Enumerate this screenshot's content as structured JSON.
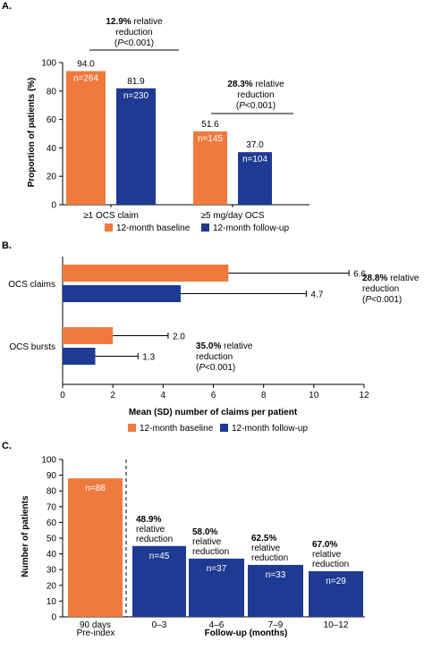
{
  "colors": {
    "baseline": "#f07a3e",
    "followup": "#1f3a93",
    "axis": "#000000"
  },
  "legend": {
    "baseline": "12-month baseline",
    "followup": "12-month follow-up"
  },
  "panelA": {
    "label": "A.",
    "ylabel": "Proportion of patients (%)",
    "annotations": [
      {
        "bold": "12.9%",
        "rest": " relative",
        "line2": "reduction",
        "pre": "(",
        "p": "P",
        "post": "<0.001)"
      },
      {
        "bold": "28.3%",
        "rest": " relative",
        "line2": "reduction",
        "pre": "(",
        "p": "P",
        "post": "<0.001)"
      }
    ]
  },
  "panelB": {
    "label": "B.",
    "xlabel": "Mean (SD) number of claims per patient",
    "annotations": [
      {
        "bold": "28.8%",
        "rest": " relative",
        "line2": "reduction",
        "pre": "(",
        "p": "P",
        "post": "<0.001)"
      },
      {
        "bold": "35.0%",
        "rest": " relative",
        "line2": "reduction",
        "pre": "(",
        "p": "P",
        "post": "<0.001)"
      }
    ]
  },
  "panelC": {
    "label": "C.",
    "ylabel": "Number of patients",
    "xlabel_secondary": "Pre-index",
    "xlabel_main": "Follow-up (months)",
    "annotation_line2": "relative",
    "annotation_line3": "reduction"
  },
  "chart_data": [
    {
      "type": "bar",
      "orientation": "vertical",
      "categories": [
        "≥1 OCS claim",
        "≥5 mg/day OCS"
      ],
      "series": [
        {
          "name": "12-month baseline",
          "values": [
            94.0,
            51.6
          ],
          "value_labels": [
            "94.0",
            "51.6"
          ],
          "n_labels": [
            "n=264",
            "n=145"
          ]
        },
        {
          "name": "12-month follow-up",
          "values": [
            81.9,
            37.0
          ],
          "value_labels": [
            "81.9",
            "37.0"
          ],
          "n_labels": [
            "n=230",
            "n=104"
          ]
        }
      ],
      "ylim": [
        0,
        100
      ],
      "yticks": [
        "0",
        "20",
        "40",
        "60",
        "80",
        "100"
      ],
      "ylabel": "Proportion of patients (%)",
      "legend": "bottom"
    },
    {
      "type": "bar",
      "orientation": "horizontal",
      "categories": [
        "OCS claims",
        "OCS bursts"
      ],
      "series": [
        {
          "name": "12-month baseline",
          "values": [
            6.6,
            2.0
          ],
          "value_labels": [
            "6.6",
            "2.0"
          ]
        },
        {
          "name": "12-month follow-up",
          "values": [
            4.7,
            1.3
          ],
          "value_labels": [
            "4.7",
            "1.3"
          ]
        }
      ],
      "error_bar_upper": {
        "baseline": [
          11.4,
          4.2
        ],
        "followup": [
          9.7,
          3.0
        ]
      },
      "xlim": [
        0,
        12
      ],
      "xticks": [
        "0",
        "2",
        "4",
        "6",
        "8",
        "10",
        "12"
      ],
      "xlabel": "Mean (SD) number of claims per patient",
      "legend": "bottom"
    },
    {
      "type": "bar",
      "orientation": "vertical",
      "categories": [
        "90 days",
        "0–3",
        "4–6",
        "7–9",
        "10–12"
      ],
      "values": [
        88,
        45,
        37,
        33,
        29
      ],
      "n_labels": [
        "n=88",
        "n=45",
        "n=37",
        "n=33",
        "n=29"
      ],
      "bar_colors": [
        "#f07a3e",
        "#1f3a93",
        "#1f3a93",
        "#1f3a93",
        "#1f3a93"
      ],
      "reduction_labels": [
        "",
        "48.9%",
        "58.0%",
        "62.5%",
        "67.0%"
      ],
      "ylim": [
        0,
        100
      ],
      "yticks": [
        "0",
        "10",
        "20",
        "30",
        "40",
        "50",
        "60",
        "70",
        "80",
        "90",
        "100"
      ],
      "ylabel": "Number of patients",
      "xlabel": "Follow-up (months)",
      "grid": false
    }
  ]
}
